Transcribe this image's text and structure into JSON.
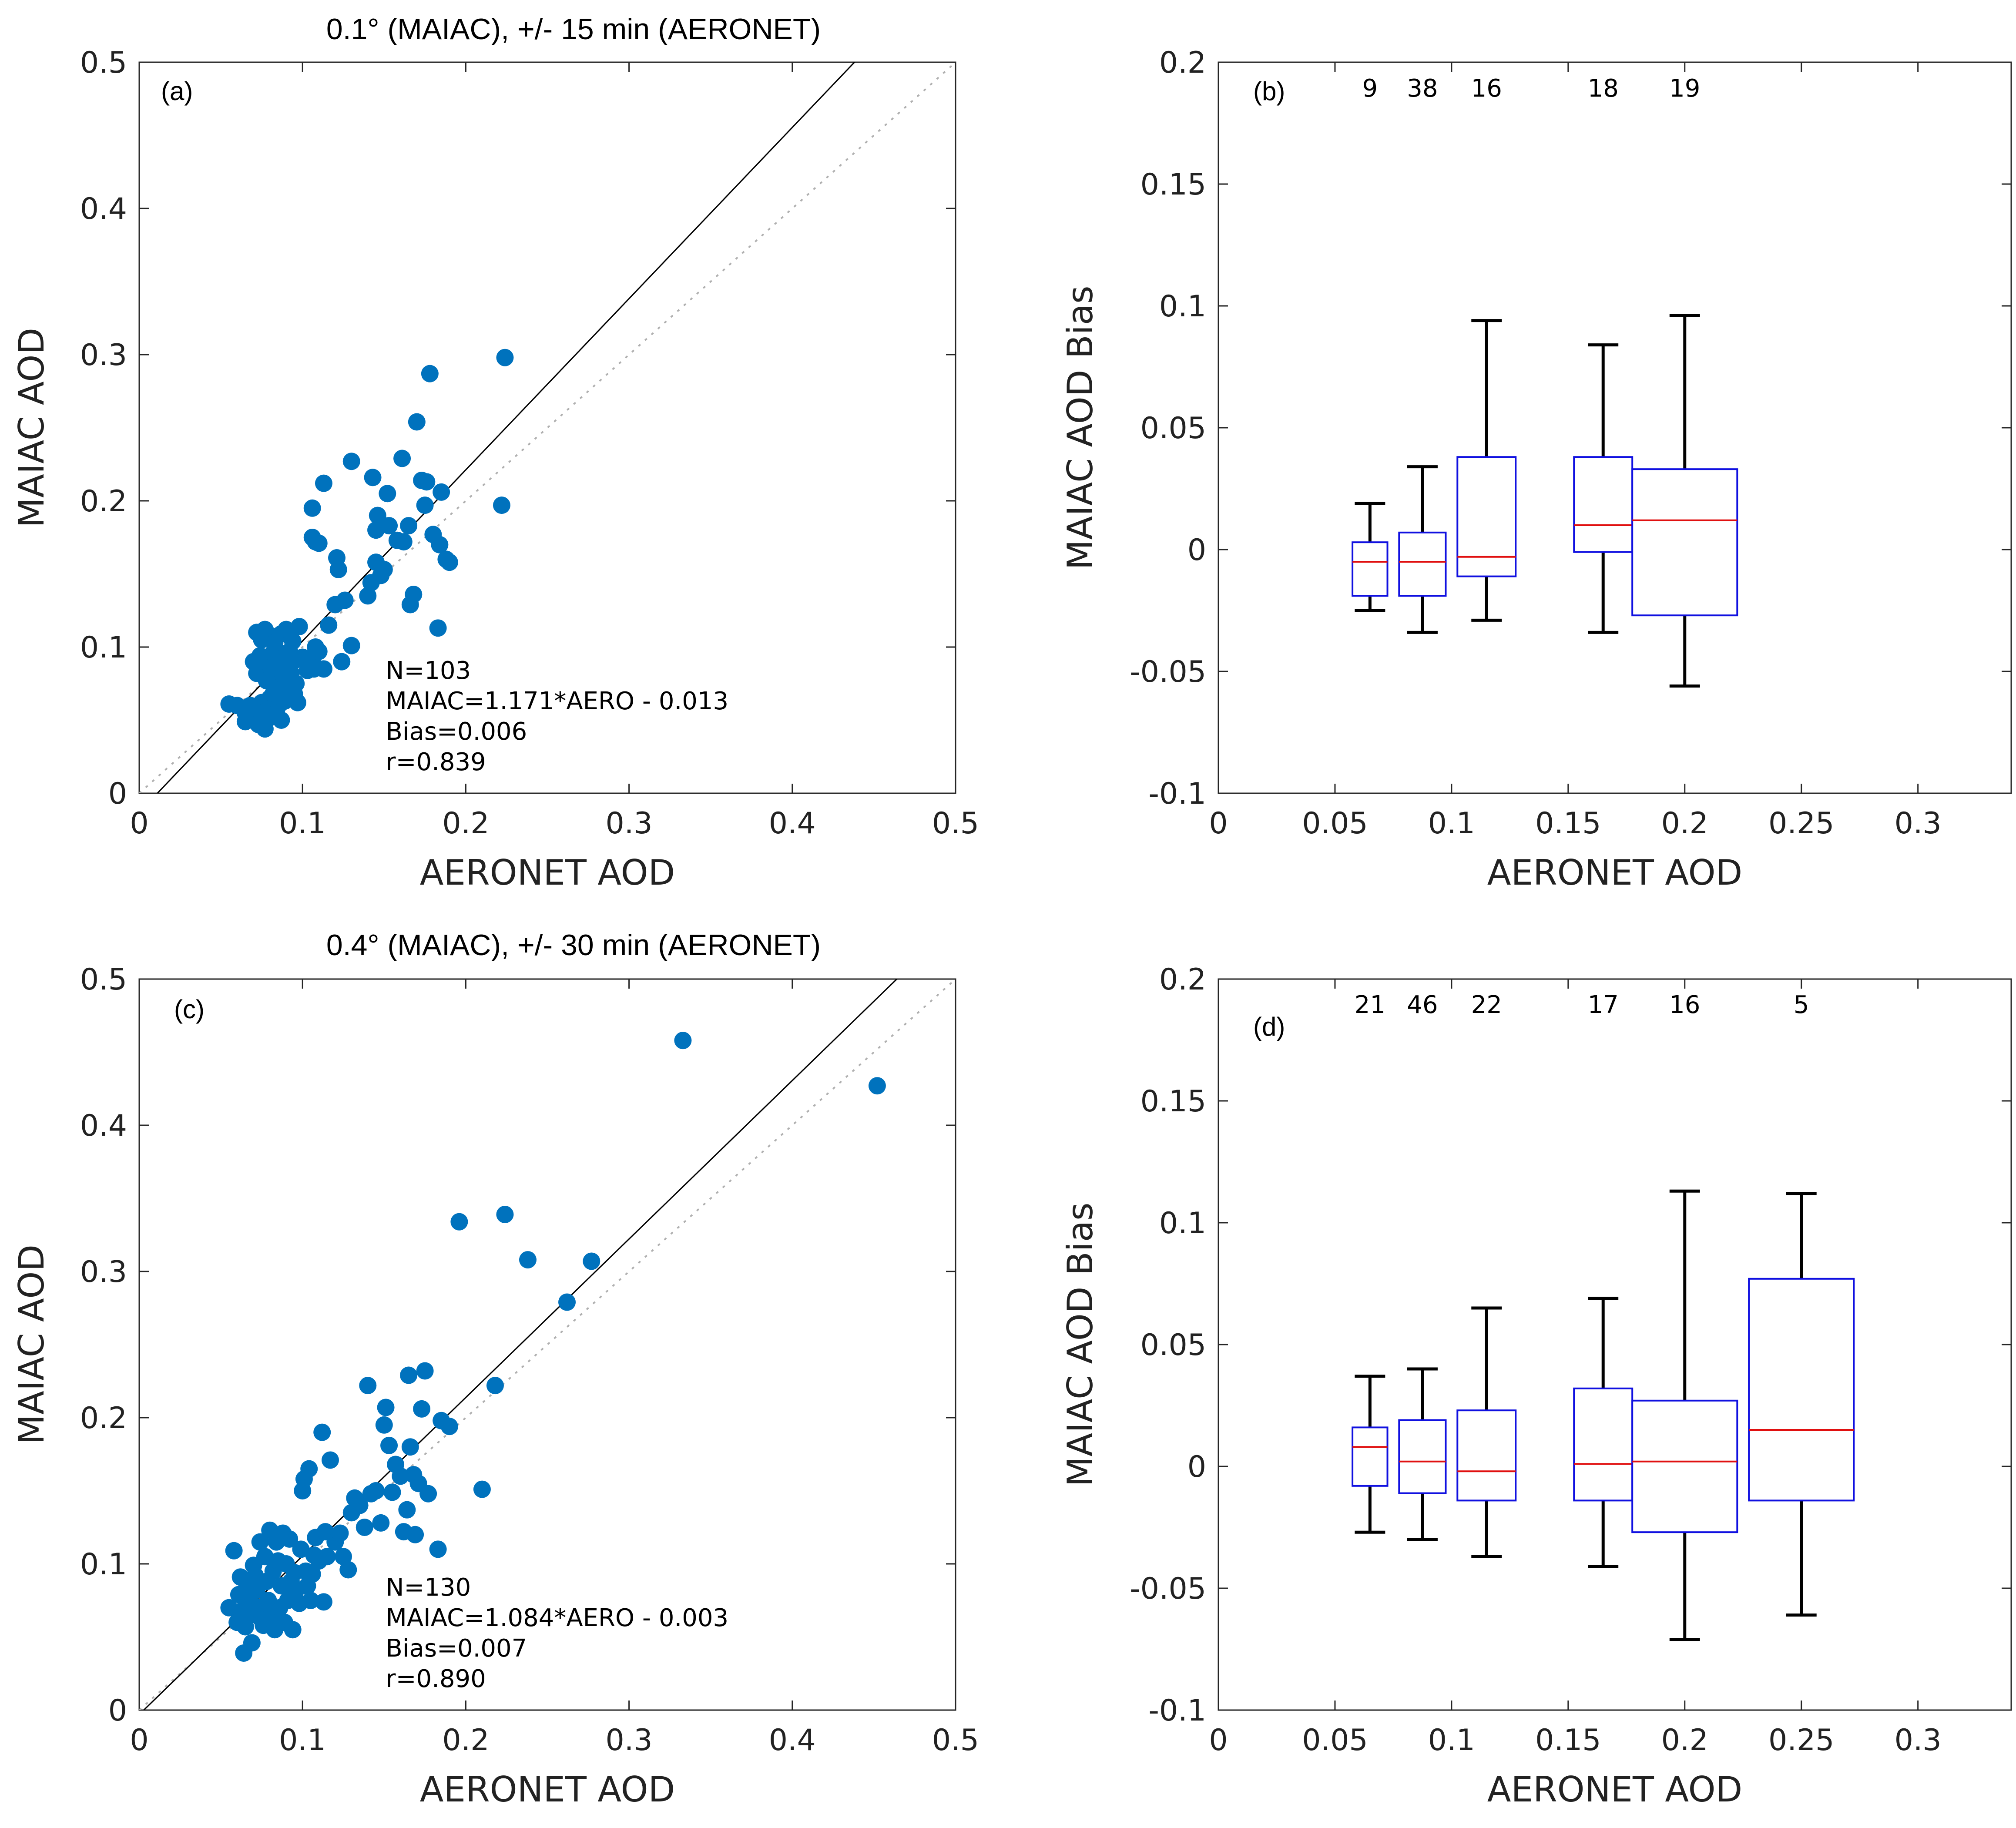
{
  "chart_data": [
    {
      "panel": "(a)",
      "type": "scatter",
      "title": "0.1°  (MAIAC), +/- 15 min (AERONET)",
      "xlabel": "AERONET AOD",
      "ylabel": "MAIAC AOD",
      "xlim": [
        0,
        0.5
      ],
      "ylim": [
        0,
        0.5
      ],
      "xticks": [
        "0",
        "0.1",
        "0.2",
        "0.3",
        "0.4",
        "0.5"
      ],
      "yticks": [
        "0",
        "0.1",
        "0.2",
        "0.3",
        "0.4",
        "0.5"
      ],
      "fit": {
        "slope": 1.171,
        "intercept": -0.013
      },
      "one_to_one": true,
      "color": "#0072BD",
      "stats": [
        "N=103",
        "MAIAC=1.171*AERO - 0.013",
        "Bias=0.006",
        "r=0.839"
      ],
      "points": [
        [
          0.055,
          0.061
        ],
        [
          0.06,
          0.06
        ],
        [
          0.065,
          0.055
        ],
        [
          0.065,
          0.049
        ],
        [
          0.068,
          0.06
        ],
        [
          0.07,
          0.052
        ],
        [
          0.072,
          0.058
        ],
        [
          0.073,
          0.047
        ],
        [
          0.075,
          0.062
        ],
        [
          0.076,
          0.055
        ],
        [
          0.077,
          0.044
        ],
        [
          0.078,
          0.05
        ],
        [
          0.079,
          0.057
        ],
        [
          0.08,
          0.065
        ],
        [
          0.081,
          0.06
        ],
        [
          0.082,
          0.068
        ],
        [
          0.083,
          0.072
        ],
        [
          0.084,
          0.055
        ],
        [
          0.085,
          0.075
        ],
        [
          0.086,
          0.061
        ],
        [
          0.087,
          0.05
        ],
        [
          0.088,
          0.078
        ],
        [
          0.089,
          0.063
        ],
        [
          0.09,
          0.069
        ],
        [
          0.07,
          0.09
        ],
        [
          0.072,
          0.082
        ],
        [
          0.074,
          0.094
        ],
        [
          0.076,
          0.085
        ],
        [
          0.078,
          0.077
        ],
        [
          0.08,
          0.088
        ],
        [
          0.082,
          0.096
        ],
        [
          0.083,
          0.083
        ],
        [
          0.085,
          0.091
        ],
        [
          0.086,
          0.085
        ],
        [
          0.087,
          0.094
        ],
        [
          0.088,
          0.081
        ],
        [
          0.089,
          0.09
        ],
        [
          0.09,
          0.075
        ],
        [
          0.091,
          0.085
        ],
        [
          0.092,
          0.097
        ],
        [
          0.093,
          0.082
        ],
        [
          0.094,
          0.09
        ],
        [
          0.095,
          0.068
        ],
        [
          0.096,
          0.075
        ],
        [
          0.097,
          0.062
        ],
        [
          0.072,
          0.11
        ],
        [
          0.075,
          0.105
        ],
        [
          0.077,
          0.112
        ],
        [
          0.08,
          0.108
        ],
        [
          0.083,
          0.103
        ],
        [
          0.087,
          0.109
        ],
        [
          0.09,
          0.112
        ],
        [
          0.094,
          0.104
        ],
        [
          0.098,
          0.114
        ],
        [
          0.1,
          0.093
        ],
        [
          0.103,
          0.084
        ],
        [
          0.106,
          0.091
        ],
        [
          0.107,
          0.085
        ],
        [
          0.108,
          0.1
        ],
        [
          0.11,
          0.097
        ],
        [
          0.113,
          0.085
        ],
        [
          0.116,
          0.115
        ],
        [
          0.12,
          0.129
        ],
        [
          0.124,
          0.09
        ],
        [
          0.126,
          0.132
        ],
        [
          0.13,
          0.101
        ],
        [
          0.106,
          0.175
        ],
        [
          0.108,
          0.172
        ],
        [
          0.11,
          0.171
        ],
        [
          0.106,
          0.195
        ],
        [
          0.113,
          0.212
        ],
        [
          0.121,
          0.161
        ],
        [
          0.122,
          0.153
        ],
        [
          0.13,
          0.227
        ],
        [
          0.14,
          0.135
        ],
        [
          0.142,
          0.144
        ],
        [
          0.145,
          0.158
        ],
        [
          0.143,
          0.216
        ],
        [
          0.146,
          0.19
        ],
        [
          0.145,
          0.18
        ],
        [
          0.148,
          0.149
        ],
        [
          0.15,
          0.153
        ],
        [
          0.152,
          0.205
        ],
        [
          0.153,
          0.183
        ],
        [
          0.158,
          0.173
        ],
        [
          0.161,
          0.229
        ],
        [
          0.162,
          0.172
        ],
        [
          0.165,
          0.183
        ],
        [
          0.166,
          0.129
        ],
        [
          0.168,
          0.136
        ],
        [
          0.17,
          0.254
        ],
        [
          0.173,
          0.214
        ],
        [
          0.175,
          0.197
        ],
        [
          0.176,
          0.213
        ],
        [
          0.178,
          0.287
        ],
        [
          0.18,
          0.177
        ],
        [
          0.183,
          0.113
        ],
        [
          0.184,
          0.17
        ],
        [
          0.185,
          0.206
        ],
        [
          0.188,
          0.16
        ],
        [
          0.19,
          0.158
        ],
        [
          0.222,
          0.197
        ],
        [
          0.224,
          0.298
        ]
      ]
    },
    {
      "panel": "(b)",
      "type": "box",
      "xlabel": "AERONET AOD",
      "ylabel": "MAIAC AOD Bias",
      "xlim": [
        0,
        0.34
      ],
      "ylim": [
        -0.1,
        0.2
      ],
      "xticks": [
        "0",
        "0.05",
        "0.1",
        "0.15",
        "0.2",
        "0.25",
        "0.3"
      ],
      "yticks": [
        "-0.1",
        "-0.05",
        "0",
        "0.05",
        "0.1",
        "0.15",
        "0.2"
      ],
      "boxes": [
        {
          "x0": 0.0575,
          "x1": 0.0725,
          "q1": -0.019,
          "median": -0.005,
          "q3": 0.003,
          "wlo": -0.025,
          "whi": 0.019,
          "n": "9"
        },
        {
          "x0": 0.0775,
          "x1": 0.0975,
          "q1": -0.019,
          "median": -0.005,
          "q3": 0.007,
          "wlo": -0.034,
          "whi": 0.034,
          "n": "38"
        },
        {
          "x0": 0.1025,
          "x1": 0.1275,
          "q1": -0.011,
          "median": -0.003,
          "q3": 0.038,
          "wlo": -0.029,
          "whi": 0.094,
          "n": "16"
        },
        {
          "x0": 0.1525,
          "x1": 0.1775,
          "q1": -0.001,
          "median": 0.01,
          "q3": 0.038,
          "wlo": -0.034,
          "whi": 0.084,
          "n": "18"
        },
        {
          "x0": 0.1775,
          "x1": 0.2225,
          "q1": -0.027,
          "median": 0.012,
          "q3": 0.033,
          "wlo": -0.056,
          "whi": 0.096,
          "n": "19"
        }
      ]
    },
    {
      "panel": "(c)",
      "type": "scatter",
      "title": "0.4°  (MAIAC), +/- 30 min (AERONET)",
      "xlabel": "AERONET AOD",
      "ylabel": "MAIAC AOD",
      "xlim": [
        0,
        0.5
      ],
      "ylim": [
        0,
        0.5
      ],
      "xticks": [
        "0",
        "0.1",
        "0.2",
        "0.3",
        "0.4",
        "0.5"
      ],
      "yticks": [
        "0",
        "0.1",
        "0.2",
        "0.3",
        "0.4",
        "0.5"
      ],
      "fit": {
        "slope": 1.084,
        "intercept": -0.003
      },
      "one_to_one": true,
      "color": "#0072BD",
      "stats": [
        "N=130",
        "MAIAC=1.084*AERO - 0.003",
        "Bias=0.007",
        "r=0.890"
      ],
      "points": [
        [
          0.055,
          0.07
        ],
        [
          0.058,
          0.109
        ],
        [
          0.06,
          0.06
        ],
        [
          0.061,
          0.079
        ],
        [
          0.062,
          0.091
        ],
        [
          0.063,
          0.068
        ],
        [
          0.064,
          0.039
        ],
        [
          0.065,
          0.057
        ],
        [
          0.066,
          0.085
        ],
        [
          0.067,
          0.075
        ],
        [
          0.068,
          0.065
        ],
        [
          0.069,
          0.046
        ],
        [
          0.07,
          0.099
        ],
        [
          0.071,
          0.092
        ],
        [
          0.072,
          0.082
        ],
        [
          0.073,
          0.07
        ],
        [
          0.074,
          0.115
        ],
        [
          0.075,
          0.062
        ],
        [
          0.076,
          0.058
        ],
        [
          0.077,
          0.105
        ],
        [
          0.078,
          0.088
        ],
        [
          0.079,
          0.075
        ],
        [
          0.08,
          0.123
        ],
        [
          0.081,
          0.065
        ],
        [
          0.082,
          0.095
        ],
        [
          0.083,
          0.055
        ],
        [
          0.084,
          0.115
        ],
        [
          0.085,
          0.102
        ],
        [
          0.086,
          0.07
        ],
        [
          0.087,
          0.085
        ],
        [
          0.088,
          0.121
        ],
        [
          0.089,
          0.06
        ],
        [
          0.09,
          0.1
        ],
        [
          0.091,
          0.075
        ],
        [
          0.092,
          0.117
        ],
        [
          0.093,
          0.088
        ],
        [
          0.094,
          0.055
        ],
        [
          0.095,
          0.094
        ],
        [
          0.096,
          0.082
        ],
        [
          0.098,
          0.073
        ],
        [
          0.099,
          0.11
        ],
        [
          0.1,
          0.15
        ],
        [
          0.101,
          0.158
        ],
        [
          0.102,
          0.095
        ],
        [
          0.103,
          0.085
        ],
        [
          0.104,
          0.165
        ],
        [
          0.105,
          0.075
        ],
        [
          0.106,
          0.093
        ],
        [
          0.107,
          0.106
        ],
        [
          0.108,
          0.118
        ],
        [
          0.11,
          0.102
        ],
        [
          0.112,
          0.19
        ],
        [
          0.113,
          0.074
        ],
        [
          0.114,
          0.122
        ],
        [
          0.115,
          0.105
        ],
        [
          0.117,
          0.171
        ],
        [
          0.12,
          0.115
        ],
        [
          0.123,
          0.121
        ],
        [
          0.125,
          0.105
        ],
        [
          0.128,
          0.096
        ],
        [
          0.13,
          0.135
        ],
        [
          0.132,
          0.145
        ],
        [
          0.135,
          0.14
        ],
        [
          0.138,
          0.125
        ],
        [
          0.14,
          0.222
        ],
        [
          0.142,
          0.148
        ],
        [
          0.145,
          0.15
        ],
        [
          0.148,
          0.128
        ],
        [
          0.15,
          0.195
        ],
        [
          0.151,
          0.207
        ],
        [
          0.153,
          0.181
        ],
        [
          0.155,
          0.149
        ],
        [
          0.157,
          0.168
        ],
        [
          0.16,
          0.16
        ],
        [
          0.162,
          0.122
        ],
        [
          0.164,
          0.137
        ],
        [
          0.165,
          0.229
        ],
        [
          0.166,
          0.18
        ],
        [
          0.168,
          0.161
        ],
        [
          0.169,
          0.12
        ],
        [
          0.171,
          0.155
        ],
        [
          0.173,
          0.206
        ],
        [
          0.175,
          0.232
        ],
        [
          0.177,
          0.148
        ],
        [
          0.183,
          0.11
        ],
        [
          0.185,
          0.198
        ],
        [
          0.19,
          0.194
        ],
        [
          0.196,
          0.334
        ],
        [
          0.21,
          0.151
        ],
        [
          0.218,
          0.222
        ],
        [
          0.224,
          0.339
        ],
        [
          0.238,
          0.308
        ],
        [
          0.262,
          0.279
        ],
        [
          0.277,
          0.307
        ],
        [
          0.333,
          0.458
        ],
        [
          0.452,
          0.427
        ]
      ]
    },
    {
      "panel": "(d)",
      "type": "box",
      "xlabel": "AERONET AOD",
      "ylabel": "MAIAC AOD Bias",
      "xlim": [
        0,
        0.34
      ],
      "ylim": [
        -0.1,
        0.2
      ],
      "xticks": [
        "0",
        "0.05",
        "0.1",
        "0.15",
        "0.2",
        "0.25",
        "0.3"
      ],
      "yticks": [
        "-0.1",
        "-0.05",
        "0",
        "0.05",
        "0.1",
        "0.15",
        "0.2"
      ],
      "boxes": [
        {
          "x0": 0.0575,
          "x1": 0.0725,
          "q1": -0.008,
          "median": 0.008,
          "q3": 0.016,
          "wlo": -0.027,
          "whi": 0.037,
          "n": "21"
        },
        {
          "x0": 0.0775,
          "x1": 0.0975,
          "q1": -0.011,
          "median": 0.002,
          "q3": 0.019,
          "wlo": -0.03,
          "whi": 0.04,
          "n": "46"
        },
        {
          "x0": 0.1025,
          "x1": 0.1275,
          "q1": -0.014,
          "median": -0.002,
          "q3": 0.023,
          "wlo": -0.037,
          "whi": 0.065,
          "n": "22"
        },
        {
          "x0": 0.1525,
          "x1": 0.1775,
          "q1": -0.014,
          "median": 0.001,
          "q3": 0.032,
          "wlo": -0.041,
          "whi": 0.069,
          "n": "17"
        },
        {
          "x0": 0.1775,
          "x1": 0.2225,
          "q1": -0.027,
          "median": 0.002,
          "q3": 0.027,
          "wlo": -0.071,
          "whi": 0.113,
          "n": "16"
        },
        {
          "x0": 0.2275,
          "x1": 0.2725,
          "q1": -0.014,
          "median": 0.015,
          "q3": 0.077,
          "wlo": -0.061,
          "whi": 0.112,
          "n": "5"
        }
      ]
    }
  ]
}
